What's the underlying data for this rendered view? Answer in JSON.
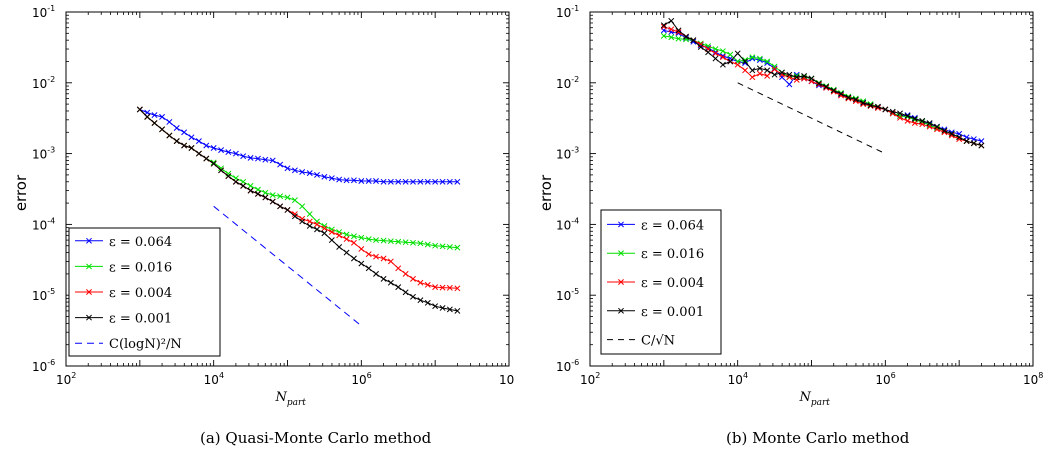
{
  "chart_data": [
    {
      "type": "line",
      "caption": "(a) Quasi-Monte Carlo method",
      "ylabel": "error",
      "xlabel_main": "N",
      "xlabel_sub": "part",
      "x_scale": "log",
      "y_scale": "log",
      "xlim": [
        100,
        100000000
      ],
      "ylim": [
        1e-06,
        0.1
      ],
      "x_ticks": [
        {
          "base": "10",
          "exp": "2"
        },
        {
          "base": "10",
          "exp": "4"
        },
        {
          "base": "10",
          "exp": "6"
        },
        {
          "base": "10",
          "exp": ""
        }
      ],
      "y_ticks": [
        {
          "base": "10",
          "exp": "-6"
        },
        {
          "base": "10",
          "exp": "-5"
        },
        {
          "base": "10",
          "exp": "-4"
        },
        {
          "base": "10",
          "exp": "-3"
        },
        {
          "base": "10",
          "exp": "-2"
        },
        {
          "base": "10",
          "exp": "-1"
        }
      ],
      "legend_position": "bottom-left",
      "series": [
        {
          "name": "ε = 0.064",
          "color": "#0000ff",
          "marker": "x",
          "dash": "",
          "x": [
            1000,
            1260,
            1580,
            2000,
            2510,
            3160,
            3980,
            5010,
            6310,
            7940,
            10000,
            12600,
            15800,
            20000,
            25100,
            31600,
            39800,
            50100,
            63100,
            79400,
            100000,
            126000,
            158000,
            200000,
            251000,
            316000,
            398000,
            501000,
            631000,
            794000,
            1000000,
            1260000,
            1580000,
            2000000,
            2510000,
            3160000,
            3980000,
            5010000,
            6310000,
            7940000,
            10000000,
            12600000,
            15800000,
            20000000
          ],
          "y": [
            0.0042,
            0.0038,
            0.0035,
            0.0033,
            0.0028,
            0.0023,
            0.002,
            0.0017,
            0.0015,
            0.0013,
            0.0012,
            0.00112,
            0.00105,
            0.001,
            0.00092,
            0.00087,
            0.00085,
            0.00082,
            0.0008,
            0.0007,
            0.00062,
            0.00058,
            0.00055,
            0.00053,
            0.0005,
            0.00047,
            0.00045,
            0.00043,
            0.00042,
            0.00042,
            0.00041,
            0.00041,
            0.00041,
            0.0004,
            0.0004,
            0.0004,
            0.0004,
            0.0004,
            0.0004,
            0.0004,
            0.0004,
            0.0004,
            0.0004,
            0.0004
          ]
        },
        {
          "name": "ε = 0.016",
          "color": "#00e000",
          "marker": "x",
          "dash": "",
          "x": [
            1000,
            1260,
            1580,
            2000,
            2510,
            3160,
            3980,
            5010,
            6310,
            7940,
            10000,
            12600,
            15800,
            20000,
            25100,
            31600,
            39800,
            50100,
            63100,
            79400,
            100000,
            126000,
            158000,
            200000,
            251000,
            316000,
            398000,
            501000,
            631000,
            794000,
            1000000,
            1260000,
            1580000,
            2000000,
            2510000,
            3160000,
            3980000,
            5010000,
            6310000,
            7940000,
            10000000,
            12600000,
            15800000,
            20000000
          ],
          "y": [
            0.0042,
            0.0033,
            0.0027,
            0.0022,
            0.0018,
            0.0015,
            0.0013,
            0.0012,
            0.001,
            0.00085,
            0.00075,
            0.00062,
            0.00052,
            0.00045,
            0.0004,
            0.00035,
            0.00031,
            0.00028,
            0.00026,
            0.00025,
            0.00024,
            0.00022,
            0.00018,
            0.00014,
            0.00011,
            9.5e-05,
            8.5e-05,
            7.8e-05,
            7.2e-05,
            6.8e-05,
            6.5e-05,
            6.2e-05,
            6e-05,
            5.9e-05,
            5.8e-05,
            5.7e-05,
            5.6e-05,
            5.5e-05,
            5.4e-05,
            5.2e-05,
            5e-05,
            4.9e-05,
            4.8e-05,
            4.7e-05
          ]
        },
        {
          "name": "ε = 0.004",
          "color": "#ff0000",
          "marker": "x",
          "dash": "",
          "x": [
            1000,
            1260,
            1580,
            2000,
            2510,
            3160,
            3980,
            5010,
            6310,
            7940,
            10000,
            12600,
            15800,
            20000,
            25100,
            31600,
            39800,
            50100,
            63100,
            79400,
            100000,
            126000,
            158000,
            200000,
            251000,
            316000,
            398000,
            501000,
            631000,
            794000,
            1000000,
            1260000,
            1580000,
            2000000,
            2510000,
            3160000,
            3980000,
            5010000,
            6310000,
            7940000,
            10000000,
            12600000,
            15800000,
            20000000
          ],
          "y": [
            0.0042,
            0.0033,
            0.0027,
            0.0022,
            0.0018,
            0.0015,
            0.0013,
            0.0012,
            0.001,
            0.00085,
            0.00072,
            0.00058,
            0.00048,
            0.0004,
            0.00035,
            0.0003,
            0.00027,
            0.00024,
            0.00021,
            0.00018,
            0.00016,
            0.00014,
            0.00012,
            0.00011,
            0.0001,
            8.8e-05,
            7.8e-05,
            7e-05,
            6.2e-05,
            5.5e-05,
            4.5e-05,
            3.8e-05,
            3.5e-05,
            3.3e-05,
            3e-05,
            2.4e-05,
            2e-05,
            1.7e-05,
            1.5e-05,
            1.4e-05,
            1.3e-05,
            1.28e-05,
            1.27e-05,
            1.25e-05
          ]
        },
        {
          "name": "ε = 0.001",
          "color": "#000000",
          "marker": "x",
          "dash": "",
          "x": [
            1000,
            1260,
            1580,
            2000,
            2510,
            3160,
            3980,
            5010,
            6310,
            7940,
            10000,
            12600,
            15800,
            20000,
            25100,
            31600,
            39800,
            50100,
            63100,
            79400,
            100000,
            126000,
            158000,
            200000,
            251000,
            316000,
            398000,
            501000,
            631000,
            794000,
            1000000,
            1260000,
            1580000,
            2000000,
            2510000,
            3160000,
            3980000,
            5010000,
            6310000,
            7940000,
            10000000,
            12600000,
            15800000,
            20000000
          ],
          "y": [
            0.0042,
            0.0033,
            0.0027,
            0.0022,
            0.0018,
            0.0015,
            0.0013,
            0.0012,
            0.001,
            0.00085,
            0.00072,
            0.00058,
            0.00048,
            0.0004,
            0.00035,
            0.0003,
            0.00027,
            0.00024,
            0.00021,
            0.00018,
            0.00016,
            0.00013,
            0.00011,
            9.5e-05,
            8.5e-05,
            7.5e-05,
            6e-05,
            4.8e-05,
            4e-05,
            3.3e-05,
            2.8e-05,
            2.4e-05,
            2e-05,
            1.7e-05,
            1.5e-05,
            1.3e-05,
            1.1e-05,
            9.5e-06,
            8.5e-06,
            7.8e-06,
            7e-06,
            6.6e-06,
            6.3e-06,
            6e-06
          ]
        },
        {
          "name": "C(logN)²/N",
          "color": "#0000ff",
          "marker": "",
          "dash": "7,5",
          "x": [
            10000,
            1000000
          ],
          "y": [
            0.00018,
            3.7e-06
          ]
        }
      ]
    },
    {
      "type": "line",
      "caption": "(b) Monte Carlo method",
      "ylabel": "error",
      "xlabel_main": "N",
      "xlabel_sub": "part",
      "x_scale": "log",
      "y_scale": "log",
      "xlim": [
        100,
        100000000
      ],
      "ylim": [
        1e-06,
        0.1
      ],
      "x_ticks": [
        {
          "base": "10",
          "exp": "2"
        },
        {
          "base": "10",
          "exp": "4"
        },
        {
          "base": "10",
          "exp": "6"
        },
        {
          "base": "10",
          "exp": "8"
        }
      ],
      "y_ticks": [
        {
          "base": "10",
          "exp": "-6"
        },
        {
          "base": "10",
          "exp": "-5"
        },
        {
          "base": "10",
          "exp": "-4"
        },
        {
          "base": "10",
          "exp": "-3"
        },
        {
          "base": "10",
          "exp": "-2"
        },
        {
          "base": "10",
          "exp": "-1"
        }
      ],
      "legend_position": "bottom-left",
      "series": [
        {
          "name": "ε = 0.064",
          "color": "#0000ff",
          "marker": "x",
          "dash": "",
          "x": [
            1000,
            1260,
            1580,
            2000,
            2510,
            3160,
            3980,
            5010,
            6310,
            7940,
            10000,
            12600,
            15800,
            20000,
            25100,
            31600,
            39800,
            50100,
            63100,
            79400,
            100000,
            126000,
            158000,
            200000,
            251000,
            316000,
            398000,
            501000,
            631000,
            794000,
            1000000,
            1260000,
            1580000,
            2000000,
            2510000,
            3160000,
            3980000,
            5010000,
            6310000,
            7940000,
            10000000,
            12600000,
            15800000,
            20000000
          ],
          "y": [
            0.055,
            0.052,
            0.05,
            0.043,
            0.038,
            0.034,
            0.031,
            0.027,
            0.024,
            0.022,
            0.02,
            0.019,
            0.022,
            0.021,
            0.019,
            0.016,
            0.012,
            0.0095,
            0.013,
            0.0115,
            0.0105,
            0.0092,
            0.0085,
            0.0078,
            0.0068,
            0.0062,
            0.0058,
            0.0053,
            0.0049,
            0.0045,
            0.0042,
            0.0037,
            0.0034,
            0.0035,
            0.0032,
            0.0028,
            0.0026,
            0.0024,
            0.0022,
            0.002,
            0.0019,
            0.0017,
            0.0016,
            0.0015
          ]
        },
        {
          "name": "ε = 0.016",
          "color": "#00e000",
          "marker": "x",
          "dash": "",
          "x": [
            1000,
            1260,
            1580,
            2000,
            2510,
            3160,
            3980,
            5010,
            6310,
            7940,
            10000,
            12600,
            15800,
            20000,
            25100,
            31600,
            39800,
            50100,
            63100,
            79400,
            100000,
            126000,
            158000,
            200000,
            251000,
            316000,
            398000,
            501000,
            631000,
            794000,
            1000000,
            1260000,
            1580000,
            2000000,
            2510000,
            3160000,
            3980000,
            5010000,
            6310000,
            7940000,
            10000000,
            12600000,
            15800000,
            20000000
          ],
          "y": [
            0.046,
            0.044,
            0.042,
            0.041,
            0.04,
            0.036,
            0.033,
            0.03,
            0.028,
            0.025,
            0.02,
            0.021,
            0.023,
            0.022,
            0.02,
            0.017,
            0.014,
            0.012,
            0.0125,
            0.012,
            0.0115,
            0.01,
            0.009,
            0.008,
            0.0072,
            0.0064,
            0.006,
            0.0055,
            0.005,
            0.0046,
            0.0042,
            0.0037,
            0.0034,
            0.0033,
            0.003,
            0.0028,
            0.0025,
            0.0023,
            0.0021,
            0.0019,
            0.0017,
            0.0015,
            0.0014,
            0.0013
          ]
        },
        {
          "name": "ε = 0.004",
          "color": "#ff0000",
          "marker": "x",
          "dash": "",
          "x": [
            1000,
            1260,
            1580,
            2000,
            2510,
            3160,
            3980,
            5010,
            6310,
            7940,
            10000,
            12600,
            15800,
            20000,
            25100,
            31600,
            39800,
            50100,
            63100,
            79400,
            100000,
            126000,
            158000,
            200000,
            251000,
            316000,
            398000,
            501000,
            631000,
            794000,
            1000000,
            1260000,
            1580000,
            2000000,
            2510000,
            3160000,
            3980000,
            5010000,
            6310000,
            7940000,
            10000000,
            12600000,
            15800000,
            20000000
          ],
          "y": [
            0.062,
            0.057,
            0.052,
            0.045,
            0.04,
            0.035,
            0.03,
            0.026,
            0.023,
            0.02,
            0.018,
            0.015,
            0.012,
            0.0135,
            0.0125,
            0.0155,
            0.013,
            0.012,
            0.011,
            0.0115,
            0.0105,
            0.0095,
            0.0085,
            0.0075,
            0.0066,
            0.006,
            0.0055,
            0.005,
            0.0047,
            0.0044,
            0.0042,
            0.0037,
            0.0032,
            0.0029,
            0.0027,
            0.0026,
            0.0024,
            0.0022,
            0.002,
            0.0018,
            0.0016,
            0.0015,
            0.0014,
            0.0013
          ]
        },
        {
          "name": "ε = 0.001",
          "color": "#000000",
          "marker": "x",
          "dash": "",
          "x": [
            1000,
            1260,
            1580,
            2000,
            2510,
            3160,
            3980,
            5010,
            6310,
            7940,
            10000,
            12600,
            15800,
            20000,
            25100,
            31600,
            39800,
            50100,
            63100,
            79400,
            100000,
            126000,
            158000,
            200000,
            251000,
            316000,
            398000,
            501000,
            631000,
            794000,
            1000000,
            1260000,
            1580000,
            2000000,
            2510000,
            3160000,
            3980000,
            5010000,
            6310000,
            7940000,
            10000000,
            12600000,
            15800000,
            20000000
          ],
          "y": [
            0.065,
            0.075,
            0.055,
            0.045,
            0.04,
            0.032,
            0.027,
            0.022,
            0.018,
            0.02,
            0.026,
            0.02,
            0.015,
            0.016,
            0.015,
            0.013,
            0.014,
            0.013,
            0.012,
            0.0125,
            0.0115,
            0.0098,
            0.0088,
            0.0078,
            0.007,
            0.0062,
            0.0058,
            0.0052,
            0.0048,
            0.0046,
            0.0042,
            0.0039,
            0.0037,
            0.0034,
            0.0031,
            0.0029,
            0.0027,
            0.0024,
            0.0021,
            0.0019,
            0.0017,
            0.0015,
            0.0014,
            0.0013
          ]
        },
        {
          "name": "C/√N",
          "color": "#000000",
          "marker": "",
          "dash": "6,5",
          "x": [
            10000,
            1000000
          ],
          "y": [
            0.01,
            0.001
          ]
        }
      ]
    }
  ]
}
